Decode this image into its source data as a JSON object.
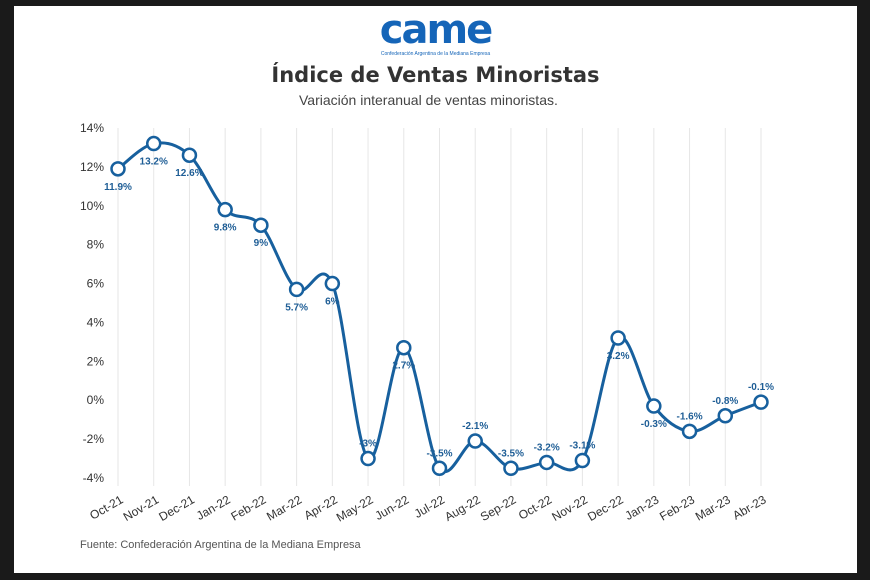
{
  "logo": {
    "mark": "came",
    "subtitle": "Confederación Argentina de la Mediana Empresa"
  },
  "chart_data": {
    "type": "line",
    "title": "Índice de Ventas Minoristas",
    "subtitle": "Variación interanual de ventas minoristas.",
    "source": "Fuente: Confederación Argentina de la Mediana Empresa",
    "categories": [
      "Oct-21",
      "Nov-21",
      "Dec-21",
      "Jan-22",
      "Feb-22",
      "Mar-22",
      "Apr-22",
      "May-22",
      "Jun-22",
      "Jul-22",
      "Aug-22",
      "Sep-22",
      "Oct-22",
      "Nov-22",
      "Dec-22",
      "Jan-23",
      "Feb-23",
      "Mar-23",
      "Abr-23"
    ],
    "values": [
      11.9,
      13.2,
      12.6,
      9.8,
      9,
      5.7,
      6,
      -3,
      2.7,
      -3.5,
      -2.1,
      -3.5,
      -3.2,
      -3.1,
      3.2,
      -0.3,
      -1.6,
      -0.8,
      -0.1
    ],
    "data_labels": [
      "11.9%",
      "13.2%",
      "12.6%",
      "9.8%",
      "9%",
      "5.7%",
      "6%",
      "-3%",
      "2.7%",
      "-3.5%",
      "-2.1%",
      "-3.5%",
      "-3.2%",
      "-3.1%",
      "3.2%",
      "-0.3%",
      "-1.6%",
      "-0.8%",
      "-0.1%"
    ],
    "yticks": [
      "14%",
      "12%",
      "10%",
      "8%",
      "6%",
      "4%",
      "2%",
      "0%",
      "-2%",
      "-4%"
    ],
    "ytick_values": [
      14,
      12,
      10,
      8,
      6,
      4,
      2,
      0,
      -2,
      -4
    ],
    "ylim": [
      -4,
      14
    ],
    "grid": "vertical",
    "smooth": true,
    "colors": {
      "line": "#17609e",
      "marker_fill": "#ffffff",
      "label": "#1f5e96"
    }
  }
}
